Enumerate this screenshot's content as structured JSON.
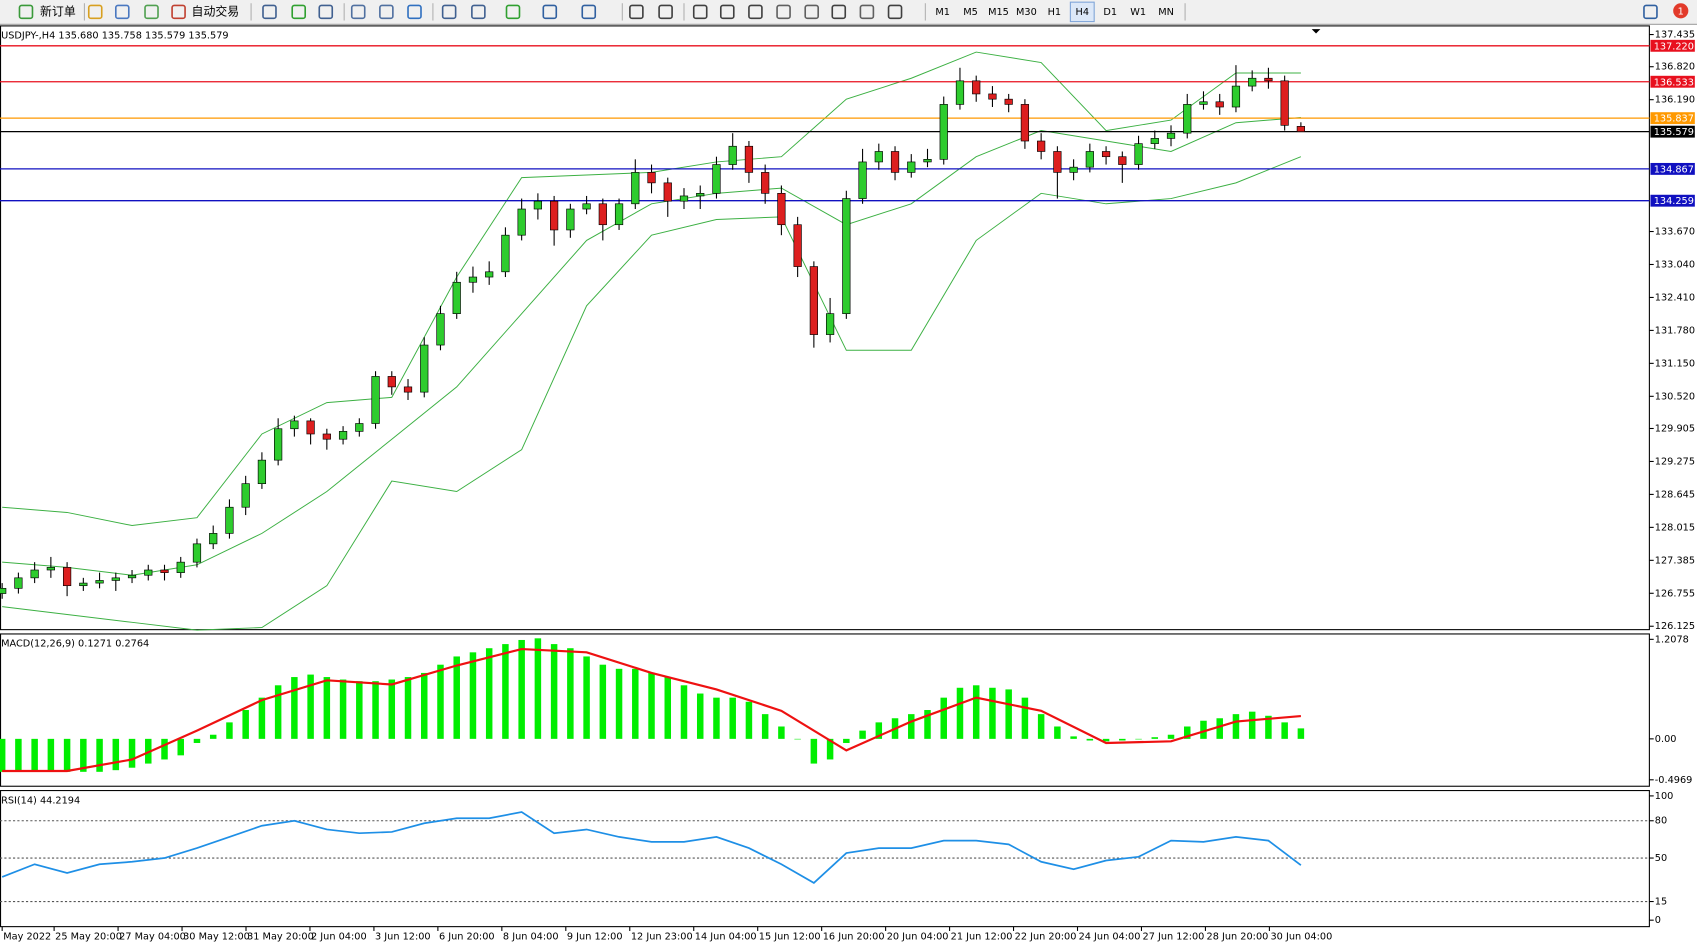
{
  "toolbar": {
    "new_order": "新订单",
    "auto_trading": "自动交易",
    "timeframes": [
      "M1",
      "M5",
      "M15",
      "M30",
      "H1",
      "H4",
      "D1",
      "W1",
      "MN"
    ],
    "active_timeframe_index": 5,
    "notifications": 1
  },
  "time_axis": {
    "labels": [
      "May 2022",
      "25 May 20:00",
      "27 May 04:00",
      "30 May 12:00",
      "31 May 20:00",
      "2 Jun 04:00",
      "3 Jun 12:00",
      "6 Jun 20:00",
      "8 Jun 04:00",
      "9 Jun 12:00",
      "12 Jun 23:00",
      "14 Jun 04:00",
      "15 Jun 12:00",
      "16 Jun 20:00",
      "20 Jun 04:00",
      "21 Jun 12:00",
      "22 Jun 20:00",
      "24 Jun 04:00",
      "27 Jun 12:00",
      "28 Jun 20:00",
      "30 Jun 04:00"
    ]
  },
  "chart_data": [
    {
      "type": "candlestick",
      "title": "USDJPY-,H4  135.680 135.758 135.579 135.579",
      "up_color": "#2ecc2e",
      "down_color": "#dd1f1f",
      "ylim": [
        126.06,
        137.6
      ],
      "yticks": [
        137.435,
        {
          "value": 136.82,
          "label": "136.820"
        },
        {
          "value": 136.19,
          "label": "136.190"
        },
        {
          "value": 133.67,
          "label": "133.670"
        },
        {
          "value": 133.04,
          "label": "133.040"
        },
        {
          "value": 132.41,
          "label": "132.410"
        },
        {
          "value": 131.78,
          "label": "131.780"
        },
        {
          "value": 131.15,
          "label": "131.150"
        },
        {
          "value": 130.52,
          "label": "130.520"
        },
        129.905,
        129.275,
        128.645,
        128.015,
        127.385,
        126.755,
        126.125
      ],
      "levels": [
        {
          "value": 137.22,
          "label": "137.220",
          "color": "#e8101e"
        },
        {
          "value": 136.533,
          "label": "136.533",
          "color": "#e8101e"
        },
        {
          "value": 135.837,
          "label": "135.837",
          "color": "#ff9900"
        },
        {
          "value": 135.579,
          "label": "135.579",
          "color": "#000000"
        },
        {
          "value": 134.867,
          "label": "134.867",
          "color": "#1010c0"
        },
        {
          "value": 134.259,
          "label": "134.259",
          "color": "#1010c0"
        }
      ],
      "ohlc": [
        [
          126.75,
          126.95,
          126.65,
          126.85
        ],
        [
          126.85,
          127.15,
          126.75,
          127.05
        ],
        [
          127.05,
          127.35,
          126.95,
          127.2
        ],
        [
          127.2,
          127.45,
          127.05,
          127.25
        ],
        [
          127.25,
          127.35,
          126.7,
          126.9
        ],
        [
          126.9,
          127.05,
          126.8,
          126.95
        ],
        [
          126.95,
          127.15,
          126.85,
          127.0
        ],
        [
          127.0,
          127.15,
          126.8,
          127.05
        ],
        [
          127.05,
          127.2,
          126.95,
          127.1
        ],
        [
          127.1,
          127.3,
          127.0,
          127.2
        ],
        [
          127.2,
          127.3,
          127.0,
          127.15
        ],
        [
          127.15,
          127.45,
          127.05,
          127.35
        ],
        [
          127.35,
          127.8,
          127.25,
          127.7
        ],
        [
          127.7,
          128.05,
          127.6,
          127.9
        ],
        [
          127.9,
          128.55,
          127.8,
          128.4
        ],
        [
          128.4,
          129.0,
          128.25,
          128.85
        ],
        [
          128.85,
          129.45,
          128.75,
          129.3
        ],
        [
          129.3,
          130.1,
          129.2,
          129.9
        ],
        [
          129.9,
          130.15,
          129.75,
          130.05
        ],
        [
          130.05,
          130.1,
          129.6,
          129.8
        ],
        [
          129.8,
          129.9,
          129.5,
          129.7
        ],
        [
          129.7,
          129.95,
          129.6,
          129.85
        ],
        [
          129.85,
          130.1,
          129.75,
          130.0
        ],
        [
          130.0,
          131.0,
          129.9,
          130.9
        ],
        [
          130.9,
          131.0,
          130.55,
          130.7
        ],
        [
          130.7,
          130.85,
          130.45,
          130.6
        ],
        [
          130.6,
          131.65,
          130.5,
          131.5
        ],
        [
          131.5,
          132.25,
          131.4,
          132.1
        ],
        [
          132.1,
          132.9,
          132.0,
          132.7
        ],
        [
          132.7,
          133.0,
          132.5,
          132.8
        ],
        [
          132.8,
          133.1,
          132.65,
          132.9
        ],
        [
          132.9,
          133.75,
          132.8,
          133.6
        ],
        [
          133.6,
          134.3,
          133.5,
          134.1
        ],
        [
          134.1,
          134.4,
          133.9,
          134.25
        ],
        [
          134.25,
          134.35,
          133.4,
          133.7
        ],
        [
          133.7,
          134.2,
          133.55,
          134.1
        ],
        [
          134.1,
          134.35,
          134.0,
          134.2
        ],
        [
          134.2,
          134.3,
          133.5,
          133.8
        ],
        [
          133.8,
          134.3,
          133.7,
          134.2
        ],
        [
          134.2,
          135.05,
          134.1,
          134.8
        ],
        [
          134.8,
          134.95,
          134.4,
          134.6
        ],
        [
          134.6,
          134.7,
          133.95,
          134.25
        ],
        [
          134.25,
          134.5,
          134.1,
          134.35
        ],
        [
          134.35,
          134.55,
          134.1,
          134.4
        ],
        [
          134.4,
          135.1,
          134.3,
          134.95
        ],
        [
          134.95,
          135.55,
          134.85,
          135.3
        ],
        [
          135.3,
          135.4,
          134.6,
          134.8
        ],
        [
          134.8,
          134.95,
          134.2,
          134.4
        ],
        [
          134.4,
          134.55,
          133.6,
          133.8
        ],
        [
          133.8,
          133.95,
          132.8,
          133.0
        ],
        [
          133.0,
          133.1,
          131.45,
          131.7
        ],
        [
          131.7,
          132.4,
          131.55,
          132.1
        ],
        [
          132.1,
          134.45,
          132.0,
          134.3
        ],
        [
          134.3,
          135.25,
          134.2,
          135.0
        ],
        [
          135.0,
          135.35,
          134.85,
          135.2
        ],
        [
          135.2,
          135.3,
          134.65,
          134.8
        ],
        [
          134.8,
          135.15,
          134.7,
          135.0
        ],
        [
          135.0,
          135.25,
          134.9,
          135.05
        ],
        [
          135.05,
          136.25,
          134.95,
          136.1
        ],
        [
          136.1,
          136.8,
          136.0,
          136.55
        ],
        [
          136.55,
          136.65,
          136.15,
          136.3
        ],
        [
          136.3,
          136.45,
          136.05,
          136.2
        ],
        [
          136.2,
          136.3,
          135.95,
          136.1
        ],
        [
          136.1,
          136.2,
          135.25,
          135.4
        ],
        [
          135.4,
          135.55,
          135.05,
          135.2
        ],
        [
          135.2,
          135.3,
          134.3,
          134.8
        ],
        [
          134.8,
          135.05,
          134.65,
          134.9
        ],
        [
          134.9,
          135.35,
          134.8,
          135.2
        ],
        [
          135.2,
          135.3,
          134.95,
          135.1
        ],
        [
          135.1,
          135.2,
          134.6,
          134.95
        ],
        [
          134.95,
          135.5,
          134.85,
          135.35
        ],
        [
          135.35,
          135.6,
          135.25,
          135.45
        ],
        [
          135.45,
          135.7,
          135.3,
          135.55
        ],
        [
          135.55,
          136.3,
          135.45,
          136.1
        ],
        [
          136.1,
          136.35,
          136.0,
          136.15
        ],
        [
          136.15,
          136.3,
          135.9,
          136.05
        ],
        [
          136.05,
          136.85,
          135.95,
          136.45
        ],
        [
          136.45,
          136.75,
          136.35,
          136.6
        ],
        [
          136.6,
          136.8,
          136.4,
          136.55
        ],
        [
          136.55,
          136.65,
          135.6,
          135.7
        ],
        [
          135.68,
          135.758,
          135.579,
          135.579
        ]
      ],
      "series": [
        {
          "color": "#3cb043",
          "x": [
            0,
            4,
            8,
            12,
            16,
            20,
            24,
            28,
            32,
            36,
            40,
            44,
            48,
            52,
            56,
            60,
            64,
            68,
            72,
            76,
            80
          ],
          "values": [
            128.4,
            128.3,
            128.05,
            128.2,
            129.8,
            130.4,
            130.5,
            132.8,
            134.7,
            134.75,
            134.8,
            135.0,
            135.1,
            136.2,
            136.6,
            137.1,
            136.9,
            135.6,
            135.8,
            136.7,
            136.7
          ]
        },
        {
          "color": "#3cb043",
          "x": [
            0,
            4,
            8,
            12,
            16,
            20,
            24,
            28,
            32,
            36,
            40,
            44,
            48,
            52,
            56,
            60,
            64,
            68,
            72,
            76,
            80
          ],
          "values": [
            127.35,
            127.25,
            127.1,
            127.3,
            127.9,
            128.7,
            129.7,
            130.7,
            132.1,
            133.5,
            134.2,
            134.4,
            134.5,
            133.8,
            134.2,
            135.1,
            135.6,
            135.4,
            135.2,
            135.75,
            135.85
          ]
        },
        {
          "color": "#3cb043",
          "x": [
            0,
            4,
            8,
            12,
            16,
            20,
            24,
            28,
            32,
            36,
            40,
            44,
            48,
            52,
            56,
            60,
            64,
            68,
            72,
            76,
            80
          ],
          "values": [
            126.5,
            126.35,
            126.2,
            126.05,
            126.1,
            126.9,
            128.9,
            128.7,
            129.5,
            132.25,
            133.6,
            133.9,
            133.95,
            131.4,
            131.4,
            133.5,
            134.4,
            134.2,
            134.3,
            134.6,
            135.1
          ]
        }
      ]
    },
    {
      "type": "bar",
      "title": "MACD(12,26,9) 0.1271 0.2764",
      "ylim": [
        -0.575,
        1.273
      ],
      "yticks": [
        1.2078,
        {
          "value": 0,
          "label": "0.00"
        },
        -0.4969
      ],
      "series": [
        {
          "style": "bar",
          "color": "#00ee00",
          "values": [
            -0.4,
            -0.4,
            -0.4,
            -0.4,
            -0.4,
            -0.4,
            -0.4,
            -0.38,
            -0.35,
            -0.3,
            -0.25,
            -0.2,
            -0.05,
            0.05,
            0.2,
            0.35,
            0.5,
            0.65,
            0.75,
            0.78,
            0.75,
            0.72,
            0.7,
            0.7,
            0.72,
            0.75,
            0.8,
            0.9,
            1.0,
            1.05,
            1.1,
            1.15,
            1.2,
            1.22,
            1.15,
            1.1,
            1.0,
            0.9,
            0.85,
            0.85,
            0.8,
            0.75,
            0.65,
            0.55,
            0.5,
            0.5,
            0.45,
            0.3,
            0.15,
            0.0,
            -0.3,
            -0.25,
            -0.05,
            0.1,
            0.2,
            0.25,
            0.3,
            0.35,
            0.5,
            0.62,
            0.65,
            0.62,
            0.6,
            0.5,
            0.3,
            0.15,
            0.03,
            -0.02,
            -0.03,
            -0.02,
            0.0,
            0.02,
            0.05,
            0.15,
            0.22,
            0.25,
            0.3,
            0.33,
            0.28,
            0.2,
            0.1271
          ]
        },
        {
          "style": "line",
          "color": "#ee1111",
          "x": [
            0,
            4,
            8,
            12,
            16,
            20,
            24,
            28,
            32,
            36,
            40,
            44,
            48,
            52,
            56,
            60,
            64,
            68,
            72,
            76,
            80
          ],
          "values": [
            -0.39,
            -0.39,
            -0.25,
            0.1,
            0.47,
            0.71,
            0.66,
            0.89,
            1.09,
            1.05,
            0.8,
            0.6,
            0.34,
            -0.14,
            0.21,
            0.5,
            0.34,
            -0.05,
            -0.03,
            0.21,
            0.2764
          ]
        }
      ]
    },
    {
      "type": "line",
      "title": "RSI(14) 44.2194",
      "ylim": [
        -5.2,
        104.3
      ],
      "yticks": [
        100,
        80,
        50,
        15,
        0
      ],
      "levels": [
        80,
        50,
        15
      ],
      "series": [
        {
          "color": "#1e8fe6",
          "x": [
            0,
            2,
            4,
            6,
            8,
            10,
            12,
            14,
            16,
            18,
            20,
            22,
            24,
            26,
            28,
            30,
            32,
            34,
            36,
            38,
            40,
            42,
            44,
            46,
            48,
            50,
            52,
            54,
            56,
            58,
            60,
            62,
            64,
            66,
            68,
            70,
            72,
            74,
            76,
            78,
            80
          ],
          "values": [
            34.8,
            45,
            38,
            45,
            47,
            50,
            58,
            67,
            76,
            80,
            73,
            70,
            71,
            78,
            82,
            82,
            87,
            70,
            73,
            67,
            63,
            63,
            67,
            58,
            45,
            30,
            54,
            58,
            58,
            64,
            64,
            61,
            47,
            41,
            48,
            51,
            64,
            63,
            67,
            64,
            44.2194
          ]
        }
      ]
    }
  ]
}
